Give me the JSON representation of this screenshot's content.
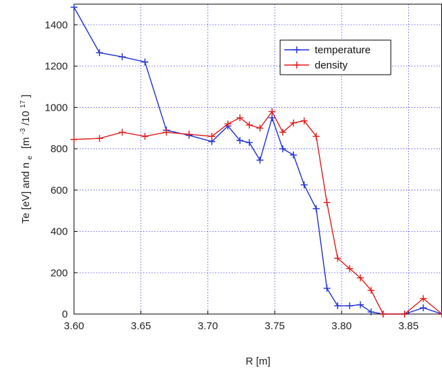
{
  "chart_data": {
    "type": "line",
    "title": "",
    "xlabel": "R [m]",
    "ylabel": {
      "main": "Te [eV] and n",
      "sub": "e",
      "unit_open": "[m",
      "exp1": "-3",
      "slash": "/10",
      "exp2": "17",
      "unit_close": "]"
    },
    "xlim": [
      3.6,
      3.875
    ],
    "ylim": [
      0,
      1500
    ],
    "xticks": [
      "3.60",
      "3.65",
      "3.70",
      "3.75",
      "3.80",
      "3.85"
    ],
    "yticks": [
      "0",
      "200",
      "400",
      "600",
      "800",
      "1000",
      "1200",
      "1400"
    ],
    "grid": true,
    "legend_position": "top-right",
    "series": [
      {
        "name": "temperature",
        "color": "#1f2fd0",
        "marker": "+",
        "points": [
          [
            3.6,
            1485
          ],
          [
            3.619,
            1265
          ],
          [
            3.636,
            1245
          ],
          [
            3.653,
            1220
          ],
          [
            3.669,
            890
          ],
          [
            3.686,
            865
          ],
          [
            3.703,
            835
          ],
          [
            3.715,
            910
          ],
          [
            3.724,
            840
          ],
          [
            3.731,
            830
          ],
          [
            3.739,
            745
          ],
          [
            3.748,
            950
          ],
          [
            3.756,
            800
          ],
          [
            3.764,
            770
          ],
          [
            3.772,
            625
          ],
          [
            3.781,
            510
          ],
          [
            3.789,
            125
          ],
          [
            3.797,
            40
          ],
          [
            3.806,
            40
          ],
          [
            3.814,
            45
          ],
          [
            3.822,
            10
          ],
          [
            3.831,
            0
          ],
          [
            3.847,
            0
          ],
          [
            3.861,
            30
          ],
          [
            3.875,
            0
          ]
        ]
      },
      {
        "name": "density",
        "color": "#e01b1b",
        "marker": "+",
        "points": [
          [
            3.6,
            845
          ],
          [
            3.619,
            850
          ],
          [
            3.636,
            880
          ],
          [
            3.653,
            860
          ],
          [
            3.669,
            880
          ],
          [
            3.686,
            870
          ],
          [
            3.703,
            860
          ],
          [
            3.715,
            920
          ],
          [
            3.724,
            950
          ],
          [
            3.731,
            915
          ],
          [
            3.739,
            900
          ],
          [
            3.748,
            980
          ],
          [
            3.756,
            880
          ],
          [
            3.764,
            925
          ],
          [
            3.772,
            935
          ],
          [
            3.781,
            860
          ],
          [
            3.789,
            540
          ],
          [
            3.797,
            270
          ],
          [
            3.806,
            220
          ],
          [
            3.814,
            175
          ],
          [
            3.822,
            115
          ],
          [
            3.831,
            0
          ],
          [
            3.847,
            0
          ],
          [
            3.861,
            75
          ],
          [
            3.875,
            0
          ]
        ]
      }
    ]
  }
}
